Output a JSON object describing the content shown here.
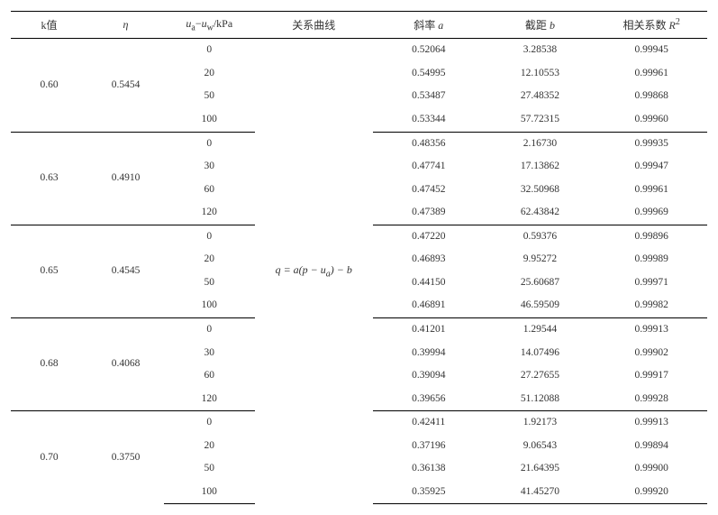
{
  "columns": {
    "c0": "k值",
    "c1_html": "<span class='hdr-sub'>η</span>",
    "c2_html": "<span class='hdr-sub'>u</span><sub>a</sub>−<span class='hdr-sub'>u</span><sub>w</sub>/kPa",
    "c3": "关系曲线",
    "c4_html": "斜率 <span class='hdr-sub'>a</span>",
    "c5_html": "截距 <span class='hdr-sub'>b</span>",
    "c6_html": "相关系数 <span class='hdr-sub'>R</span><sup>2</sup>"
  },
  "formula_html": "q = a(p − u<sub>a</sub>) − b",
  "groups": [
    {
      "k": "0.60",
      "eta": "0.5454",
      "rows": [
        {
          "ua": "0",
          "slope": "0.52064",
          "intercept": "3.28538",
          "r2": "0.99945"
        },
        {
          "ua": "20",
          "slope": "0.54995",
          "intercept": "12.10553",
          "r2": "0.99961"
        },
        {
          "ua": "50",
          "slope": "0.53487",
          "intercept": "27.48352",
          "r2": "0.99868"
        },
        {
          "ua": "100",
          "slope": "0.53344",
          "intercept": "57.72315",
          "r2": "0.99960"
        }
      ]
    },
    {
      "k": "0.63",
      "eta": "0.4910",
      "rows": [
        {
          "ua": "0",
          "slope": "0.48356",
          "intercept": "2.16730",
          "r2": "0.99935"
        },
        {
          "ua": "30",
          "slope": "0.47741",
          "intercept": "17.13862",
          "r2": "0.99947"
        },
        {
          "ua": "60",
          "slope": "0.47452",
          "intercept": "32.50968",
          "r2": "0.99961"
        },
        {
          "ua": "120",
          "slope": "0.47389",
          "intercept": "62.43842",
          "r2": "0.99969"
        }
      ]
    },
    {
      "k": "0.65",
      "eta": "0.4545",
      "rows": [
        {
          "ua": "0",
          "slope": "0.47220",
          "intercept": "0.59376",
          "r2": "0.99896"
        },
        {
          "ua": "20",
          "slope": "0.46893",
          "intercept": "9.95272",
          "r2": "0.99989"
        },
        {
          "ua": "50",
          "slope": "0.44150",
          "intercept": "25.60687",
          "r2": "0.99971"
        },
        {
          "ua": "100",
          "slope": "0.46891",
          "intercept": "46.59509",
          "r2": "0.99982"
        }
      ]
    },
    {
      "k": "0.68",
      "eta": "0.4068",
      "rows": [
        {
          "ua": "0",
          "slope": "0.41201",
          "intercept": "1.29544",
          "r2": "0.99913"
        },
        {
          "ua": "30",
          "slope": "0.39994",
          "intercept": "14.07496",
          "r2": "0.99902"
        },
        {
          "ua": "60",
          "slope": "0.39094",
          "intercept": "27.27655",
          "r2": "0.99917"
        },
        {
          "ua": "120",
          "slope": "0.39656",
          "intercept": "51.12088",
          "r2": "0.99928"
        }
      ]
    },
    {
      "k": "0.70",
      "eta": "0.3750",
      "rows": [
        {
          "ua": "0",
          "slope": "0.42411",
          "intercept": "1.92173",
          "r2": "0.99913"
        },
        {
          "ua": "20",
          "slope": "0.37196",
          "intercept": "9.06543",
          "r2": "0.99894"
        },
        {
          "ua": "50",
          "slope": "0.36138",
          "intercept": "21.64395",
          "r2": "0.99900"
        },
        {
          "ua": "100",
          "slope": "0.35925",
          "intercept": "41.45270",
          "r2": "0.99920"
        }
      ]
    }
  ],
  "col_widths": [
    "11%",
    "11%",
    "13%",
    "17%",
    "16%",
    "16%",
    "16%"
  ]
}
